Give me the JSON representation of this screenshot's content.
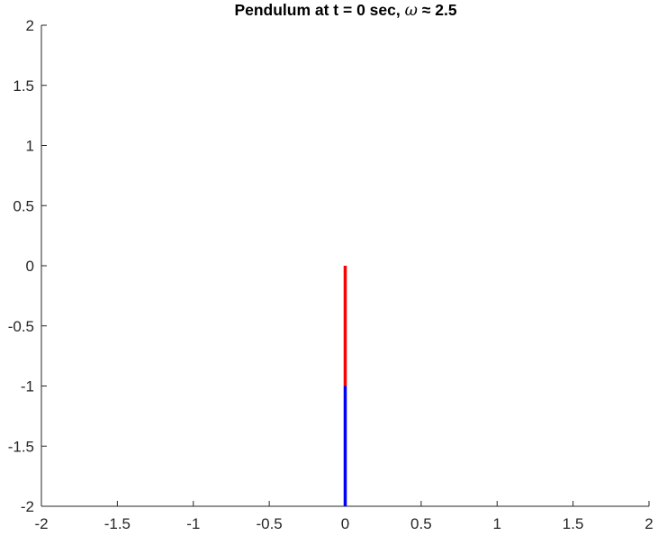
{
  "chart_data": {
    "type": "line",
    "title": {
      "prefix": "Pendulum at t = 0 sec, ",
      "symbol": "ω",
      "relation": " ≈ ",
      "value": "2.5"
    },
    "xlabel": "",
    "ylabel": "",
    "xlim": [
      -2,
      2
    ],
    "ylim": [
      -2,
      2
    ],
    "xticks": [
      -2,
      -1.5,
      -1,
      -0.5,
      0,
      0.5,
      1,
      1.5,
      2
    ],
    "xtick_labels": [
      "-2",
      "-1.5",
      "-1",
      "-0.5",
      "0",
      "0.5",
      "1",
      "1.5",
      "2"
    ],
    "yticks": [
      2,
      1.5,
      1,
      0.5,
      0,
      -0.5,
      -1,
      -1.5,
      -2
    ],
    "ytick_labels": [
      "2",
      "1.5",
      "1",
      "0.5",
      "0",
      "-0.5",
      "-1",
      "-1.5",
      "-2"
    ],
    "grid": false,
    "box": "off",
    "series": [
      {
        "x": [
          0,
          0
        ],
        "y": [
          0,
          -1
        ],
        "color": "#ff0000"
      },
      {
        "x": [
          0,
          0
        ],
        "y": [
          -1,
          -2
        ],
        "color": "#0000ff"
      }
    ],
    "axis_color": "#262626"
  }
}
